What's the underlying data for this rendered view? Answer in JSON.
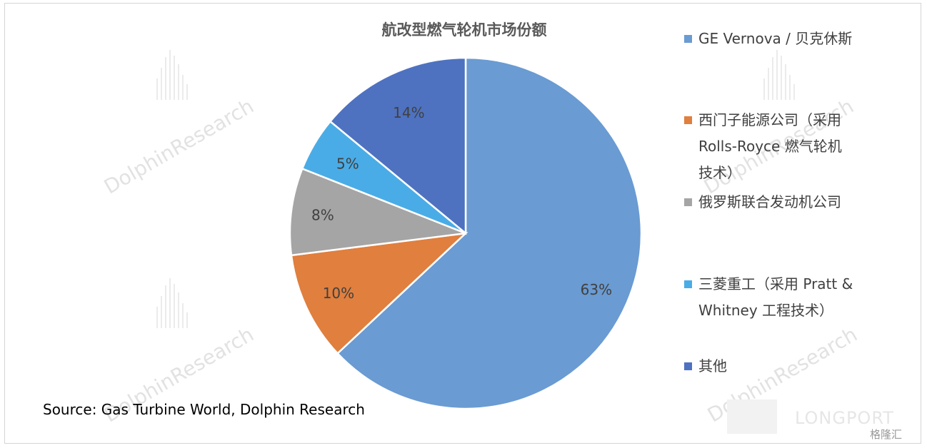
{
  "chart_data": {
    "type": "pie",
    "title": "航改型燃气轮机市场份额",
    "categories": [
      "GE Vernova / 贝克休斯",
      "西门子能源公司（采用 Rolls-Royce 燃气轮机技术）",
      "俄罗斯联合发动机公司",
      "三菱重工（采用 Pratt & Whitney 工程技术）",
      "其他"
    ],
    "values": [
      63,
      10,
      8,
      5,
      14
    ],
    "labels": [
      "63%",
      "10%",
      "8%",
      "5%",
      "14%"
    ],
    "colors": [
      "#6A9BD2",
      "#E07F3E",
      "#A5A5A5",
      "#4AACE6",
      "#4E72C0"
    ],
    "legend_position": "right",
    "legend_lines": [
      [
        "GE Vernova / 贝克休斯"
      ],
      [
        "西门子能源公司（采用",
        "Rolls-Royce 燃气轮机",
        "技术）"
      ],
      [
        "俄罗斯联合发动机公司"
      ],
      [
        "三菱重工（采用 Pratt &",
        "Whitney 工程技术）"
      ],
      [
        "其他"
      ]
    ]
  },
  "source": "Source: Gas Turbine World, Dolphin Research",
  "watermark": "DolphinResearch",
  "logo": "LONGPORT",
  "badge": "格隆汇"
}
